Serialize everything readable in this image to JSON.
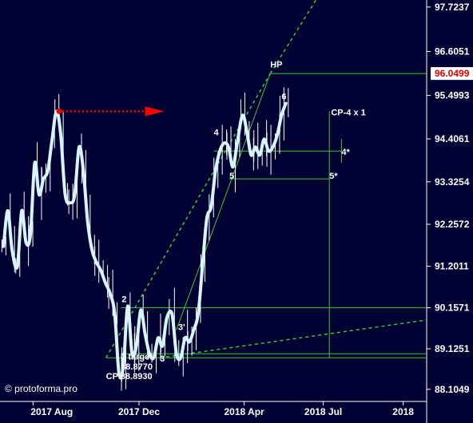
{
  "chart_data": {
    "type": "line",
    "ylim": [
      87.8,
      97.9
    ],
    "y_ticks": [
      "97.7237",
      "96.6051",
      "95.4993",
      "94.4061",
      "93.3254",
      "92.2572",
      "91.2011",
      "90.1571",
      "89.1251",
      "88.1049"
    ],
    "y_tick_values": [
      97.7237,
      96.6051,
      95.4993,
      94.4061,
      93.3254,
      92.2572,
      91.2011,
      90.1571,
      89.1251,
      88.1049
    ],
    "current_price": "96.0499",
    "current_price_value": 96.0499,
    "x_ticks": [
      "2017 Aug",
      "2017 Dec",
      "2018 Apr",
      "2018 Jul",
      "2018"
    ],
    "x_tick_dates": [
      "2017-08-01",
      "2017-12-01",
      "2018-04-01",
      "2018-07-01",
      "2018-10-01"
    ],
    "xlim": [
      "2017-06-24",
      "2018-10-28"
    ],
    "series": [
      {
        "values": [
          [
            "2017-06-28",
            91.7
          ],
          [
            "2017-07-03",
            92.6
          ],
          [
            "2017-07-08",
            91.6
          ],
          [
            "2017-07-14",
            91.2
          ],
          [
            "2017-07-19",
            92.6
          ],
          [
            "2017-07-24",
            91.8
          ],
          [
            "2017-07-29",
            92.0
          ],
          [
            "2017-08-03",
            93.8
          ],
          [
            "2017-08-08",
            93.0
          ],
          [
            "2017-08-13",
            93.4
          ],
          [
            "2017-08-18",
            93.6
          ],
          [
            "2017-08-23",
            94.4
          ],
          [
            "2017-08-28",
            95.1
          ],
          [
            "2017-09-02",
            94.5
          ],
          [
            "2017-09-07",
            93.0
          ],
          [
            "2017-09-13",
            92.8
          ],
          [
            "2017-09-18",
            93.0
          ],
          [
            "2017-09-23",
            94.2
          ],
          [
            "2017-09-28",
            93.6
          ],
          [
            "2017-10-03",
            92.3
          ],
          [
            "2017-10-08",
            91.6
          ],
          [
            "2017-10-13",
            91.3
          ],
          [
            "2017-10-18",
            91.1
          ],
          [
            "2017-10-23",
            90.8
          ],
          [
            "2017-10-29",
            90.5
          ],
          [
            "2017-11-03",
            90.0
          ],
          [
            "2017-11-08",
            88.5
          ],
          [
            "2017-11-13",
            88.7
          ],
          [
            "2017-11-18",
            90.2
          ],
          [
            "2017-11-23",
            89.0
          ],
          [
            "2017-11-28",
            89.2
          ],
          [
            "2017-12-03",
            90.1
          ],
          [
            "2017-12-08",
            89.5
          ],
          [
            "2017-12-13",
            89.0
          ],
          [
            "2017-12-18",
            88.9
          ],
          [
            "2017-12-23",
            89.4
          ],
          [
            "2017-12-28",
            89.2
          ],
          [
            "2018-01-02",
            89.9
          ],
          [
            "2018-01-08",
            90.0
          ],
          [
            "2018-01-13",
            89.0
          ],
          [
            "2018-01-18",
            88.9
          ],
          [
            "2018-01-23",
            89.4
          ],
          [
            "2018-01-28",
            89.3
          ],
          [
            "2018-02-02",
            89.6
          ],
          [
            "2018-02-07",
            90.0
          ],
          [
            "2018-02-12",
            91.2
          ],
          [
            "2018-02-17",
            92.4
          ],
          [
            "2018-02-22",
            92.7
          ],
          [
            "2018-02-27",
            93.6
          ],
          [
            "2018-03-04",
            94.1
          ],
          [
            "2018-03-09",
            94.3
          ],
          [
            "2018-03-14",
            94.2
          ],
          [
            "2018-03-19",
            93.7
          ],
          [
            "2018-03-24",
            94.3
          ],
          [
            "2018-03-30",
            95.0
          ],
          [
            "2018-04-04",
            94.6
          ],
          [
            "2018-04-09",
            94.0
          ],
          [
            "2018-04-14",
            94.2
          ],
          [
            "2018-04-19",
            94.0
          ],
          [
            "2018-04-24",
            94.4
          ],
          [
            "2018-04-29",
            94.1
          ],
          [
            "2018-05-04",
            94.2
          ],
          [
            "2018-05-09",
            94.5
          ],
          [
            "2018-05-14",
            95.0
          ],
          [
            "2018-05-19",
            95.3
          ]
        ]
      }
    ],
    "annotations": [
      {
        "text": "HP",
        "x": "2018-05-01",
        "y": 96.2
      },
      {
        "text": "6",
        "x": "2018-05-14",
        "y": 95.4
      },
      {
        "text": "CP-4 x 1",
        "x": "2018-07-10",
        "y": 95.0
      },
      {
        "text": "4",
        "x": "2018-02-25",
        "y": 94.5
      },
      {
        "text": "4*",
        "x": "2018-07-22",
        "y": 94.0
      },
      {
        "text": "5",
        "x": "2018-03-15",
        "y": 93.4
      },
      {
        "text": "5*",
        "x": "2018-07-08",
        "y": 93.4
      },
      {
        "text": "2",
        "x": "2017-11-11",
        "y": 90.3
      },
      {
        "text": "3'",
        "x": "2018-01-15",
        "y": 89.6
      },
      {
        "text": "3",
        "x": "2017-12-25",
        "y": 88.8
      },
      {
        "text": "2 target",
        "x": "2017-11-10",
        "y": 88.85
      },
      {
        "text": "88.8770",
        "x": "2017-11-10",
        "y": 88.6
      },
      {
        "text": "CP 88.8930",
        "x": "2017-10-24",
        "y": 88.36
      }
    ],
    "horizontal_levels": [
      96.0499,
      94.1,
      93.4,
      90.1571,
      89.0,
      88.9
    ],
    "watermark": "© protoforma.pro",
    "colors": {
      "background": "#000033",
      "price_line": "#d8f4ff",
      "bars": "#ffffff",
      "guide_lines": "#33cc33",
      "arrow": "#ff0000",
      "current_price_tag": "#ffffff",
      "current_price_text": "#e60000"
    }
  }
}
